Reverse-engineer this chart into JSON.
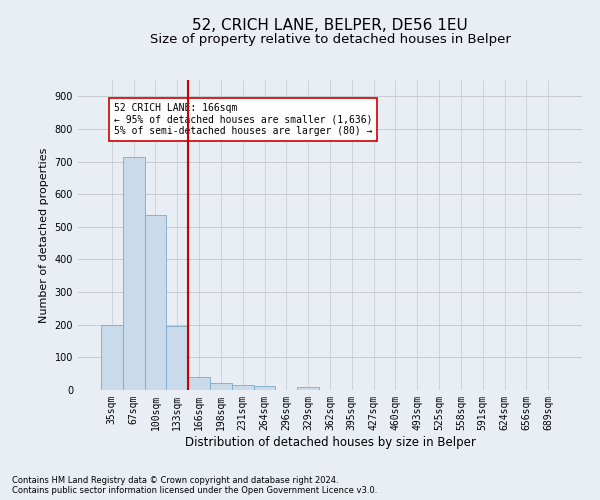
{
  "title": "52, CRICH LANE, BELPER, DE56 1EU",
  "subtitle": "Size of property relative to detached houses in Belper",
  "xlabel": "Distribution of detached houses by size in Belper",
  "ylabel": "Number of detached properties",
  "footnote1": "Contains HM Land Registry data © Crown copyright and database right 2024.",
  "footnote2": "Contains public sector information licensed under the Open Government Licence v3.0.",
  "bin_labels": [
    "35sqm",
    "67sqm",
    "100sqm",
    "133sqm",
    "166sqm",
    "198sqm",
    "231sqm",
    "264sqm",
    "296sqm",
    "329sqm",
    "362sqm",
    "395sqm",
    "427sqm",
    "460sqm",
    "493sqm",
    "525sqm",
    "558sqm",
    "591sqm",
    "624sqm",
    "656sqm",
    "689sqm"
  ],
  "bar_values": [
    200,
    715,
    535,
    195,
    40,
    20,
    15,
    12,
    0,
    10,
    0,
    0,
    0,
    0,
    0,
    0,
    0,
    0,
    0,
    0,
    0
  ],
  "bar_color": "#c9daea",
  "bar_edge_color": "#7aaac8",
  "vline_x_index": 4,
  "vline_color": "#cc0000",
  "annotation_text": "52 CRICH LANE: 166sqm\n← 95% of detached houses are smaller (1,636)\n5% of semi-detached houses are larger (80) →",
  "annotation_box_color": "#ffffff",
  "annotation_box_edge": "#cc0000",
  "ylim": [
    0,
    950
  ],
  "yticks": [
    0,
    100,
    200,
    300,
    400,
    500,
    600,
    700,
    800,
    900
  ],
  "grid_color": "#c8c8d0",
  "bg_color": "#e8eef4",
  "title_fontsize": 11,
  "subtitle_fontsize": 9.5,
  "ylabel_fontsize": 8,
  "xlabel_fontsize": 8.5,
  "tick_fontsize": 7,
  "annot_fontsize": 7,
  "footnote_fontsize": 6
}
